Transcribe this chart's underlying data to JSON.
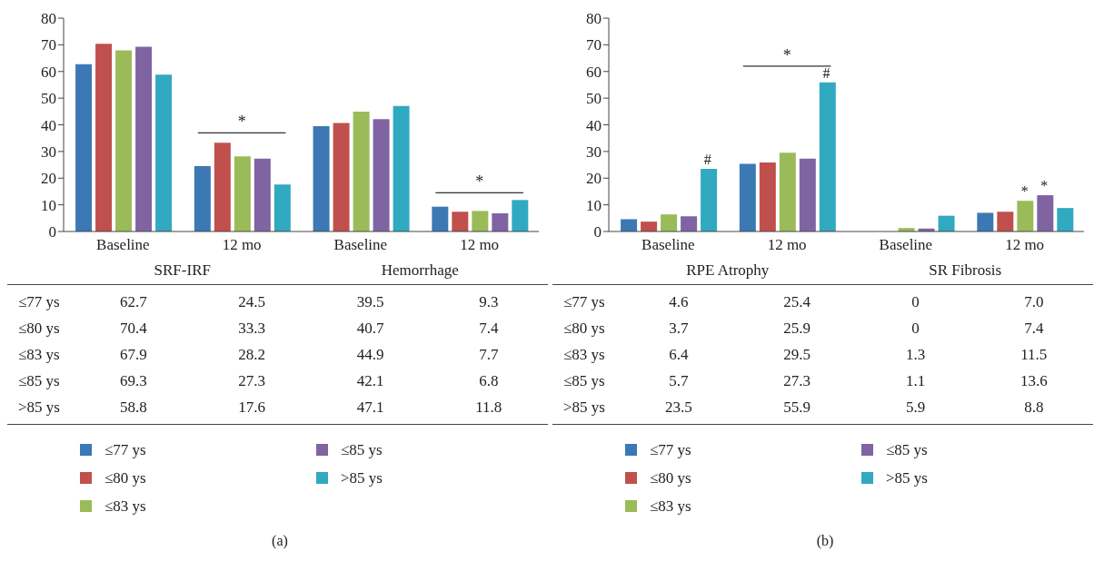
{
  "chart_data": [
    {
      "type": "bar",
      "categories": [
        "Baseline",
        "12 mo",
        "Baseline",
        "12 mo"
      ],
      "series": [
        {
          "name": "≤77 ys",
          "color": "#3c78b4",
          "values": [
            62.7,
            24.5,
            39.5,
            9.3
          ]
        },
        {
          "name": "≤80 ys",
          "color": "#c0504d",
          "values": [
            70.4,
            33.3,
            40.7,
            7.4
          ]
        },
        {
          "name": "≤83 ys",
          "color": "#9bbb59",
          "values": [
            67.9,
            28.2,
            44.9,
            7.7
          ]
        },
        {
          "name": "≤85 ys",
          "color": "#8064a2",
          "values": [
            69.3,
            27.3,
            42.1,
            6.8
          ]
        },
        {
          "name": ">85 ys",
          "color": "#31a9c1",
          "values": [
            58.8,
            17.6,
            47.1,
            11.8
          ]
        }
      ],
      "ylim": [
        0,
        80
      ],
      "yticks": [
        0,
        10,
        20,
        30,
        40,
        50,
        60,
        70,
        80
      ],
      "data_labels": true,
      "legend": "bottom",
      "annotations": [
        "SRF-IRF",
        "Hemorrhage",
        "*",
        "*",
        "(a)"
      ]
    },
    {
      "type": "bar",
      "categories": [
        "Baseline",
        "12 mo",
        "Baseline",
        "12 mo"
      ],
      "series": [
        {
          "name": "≤77 ys",
          "color": "#3c78b4",
          "values": [
            4.6,
            25.4,
            0,
            7.0
          ],
          "value_labels": [
            "4.6",
            "25.4",
            "0",
            "7.0"
          ]
        },
        {
          "name": "≤80 ys",
          "color": "#c0504d",
          "values": [
            3.7,
            25.9,
            0,
            7.4
          ],
          "value_labels": [
            "3.7",
            "25.9",
            "0",
            "7.4"
          ]
        },
        {
          "name": "≤83 ys",
          "color": "#9bbb59",
          "values": [
            6.4,
            29.5,
            1.3,
            11.5
          ],
          "value_labels": [
            "6.4",
            "29.5",
            "1.3",
            "11.5"
          ]
        },
        {
          "name": "≤85 ys",
          "color": "#8064a2",
          "values": [
            5.7,
            27.3,
            1.1,
            13.6
          ],
          "value_labels": [
            "5.7",
            "27.3",
            "1.1",
            "13.6"
          ]
        },
        {
          "name": ">85 ys",
          "color": "#31a9c1",
          "values": [
            23.5,
            55.9,
            5.9,
            8.8
          ],
          "value_labels": [
            "23.5",
            "55.9",
            "5.9",
            "8.8"
          ]
        }
      ],
      "ylim": [
        0,
        80
      ],
      "yticks": [
        0,
        10,
        20,
        30,
        40,
        50,
        60,
        70,
        80
      ],
      "legend": "bottom",
      "annotations": [
        "RPE Atrophy",
        "SR Fibrosis",
        "*",
        "#",
        "#",
        "*",
        "*",
        "(b)"
      ]
    }
  ]
}
